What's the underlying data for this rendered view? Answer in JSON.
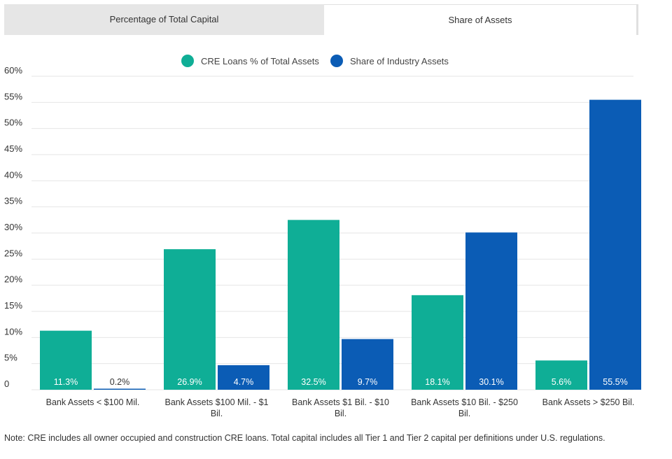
{
  "tabs": [
    {
      "label": "Percentage of Total  Capital",
      "active": false
    },
    {
      "label": "Share of Assets",
      "active": true
    }
  ],
  "colors": {
    "cre": "#0fae96",
    "industry": "#0b5cb5",
    "grid": "#e6e6e6",
    "axis_text": "#333333"
  },
  "chart_data": {
    "type": "bar",
    "categories": [
      [
        "Bank Assets < $100 Mil."
      ],
      [
        "Bank Assets $100 Mil. - $1",
        "Bil."
      ],
      [
        "Bank Assets $1 Bil. - $10",
        "Bil."
      ],
      [
        "Bank Assets $10 Bil. - $250",
        "Bil."
      ],
      [
        "Bank Assets > $250 Bil."
      ]
    ],
    "series": [
      {
        "name": "CRE Loans % of Total Assets",
        "values": [
          11.3,
          26.9,
          32.5,
          18.1,
          5.6
        ],
        "labels": [
          "11.3%",
          "26.9%",
          "32.5%",
          "18.1%",
          "5.6%"
        ],
        "color": "#0fae96"
      },
      {
        "name": "Share of Industry Assets",
        "values": [
          0.2,
          4.7,
          9.7,
          30.1,
          55.5
        ],
        "labels": [
          "0.2%",
          "4.7%",
          "9.7%",
          "30.1%",
          "55.5%"
        ],
        "color": "#0b5cb5"
      }
    ],
    "ylim": [
      0,
      60
    ],
    "yticks": [
      {
        "value": 0,
        "label": "0"
      },
      {
        "value": 5,
        "label": "5%"
      },
      {
        "value": 10,
        "label": "10%"
      },
      {
        "value": 15,
        "label": "15%"
      },
      {
        "value": 20,
        "label": "20%"
      },
      {
        "value": 25,
        "label": "25%"
      },
      {
        "value": 30,
        "label": "30%"
      },
      {
        "value": 35,
        "label": "35%"
      },
      {
        "value": 40,
        "label": "40%"
      },
      {
        "value": 45,
        "label": "45%"
      },
      {
        "value": 50,
        "label": "50%"
      },
      {
        "value": 55,
        "label": "55%"
      },
      {
        "value": 60,
        "label": "60%"
      }
    ],
    "grid": true,
    "legend_position": "top-center"
  },
  "note": "Note: CRE includes all owner occupied and construction CRE loans. Total capital includes all Tier 1 and Tier 2 capital per definitions under U.S. regulations."
}
